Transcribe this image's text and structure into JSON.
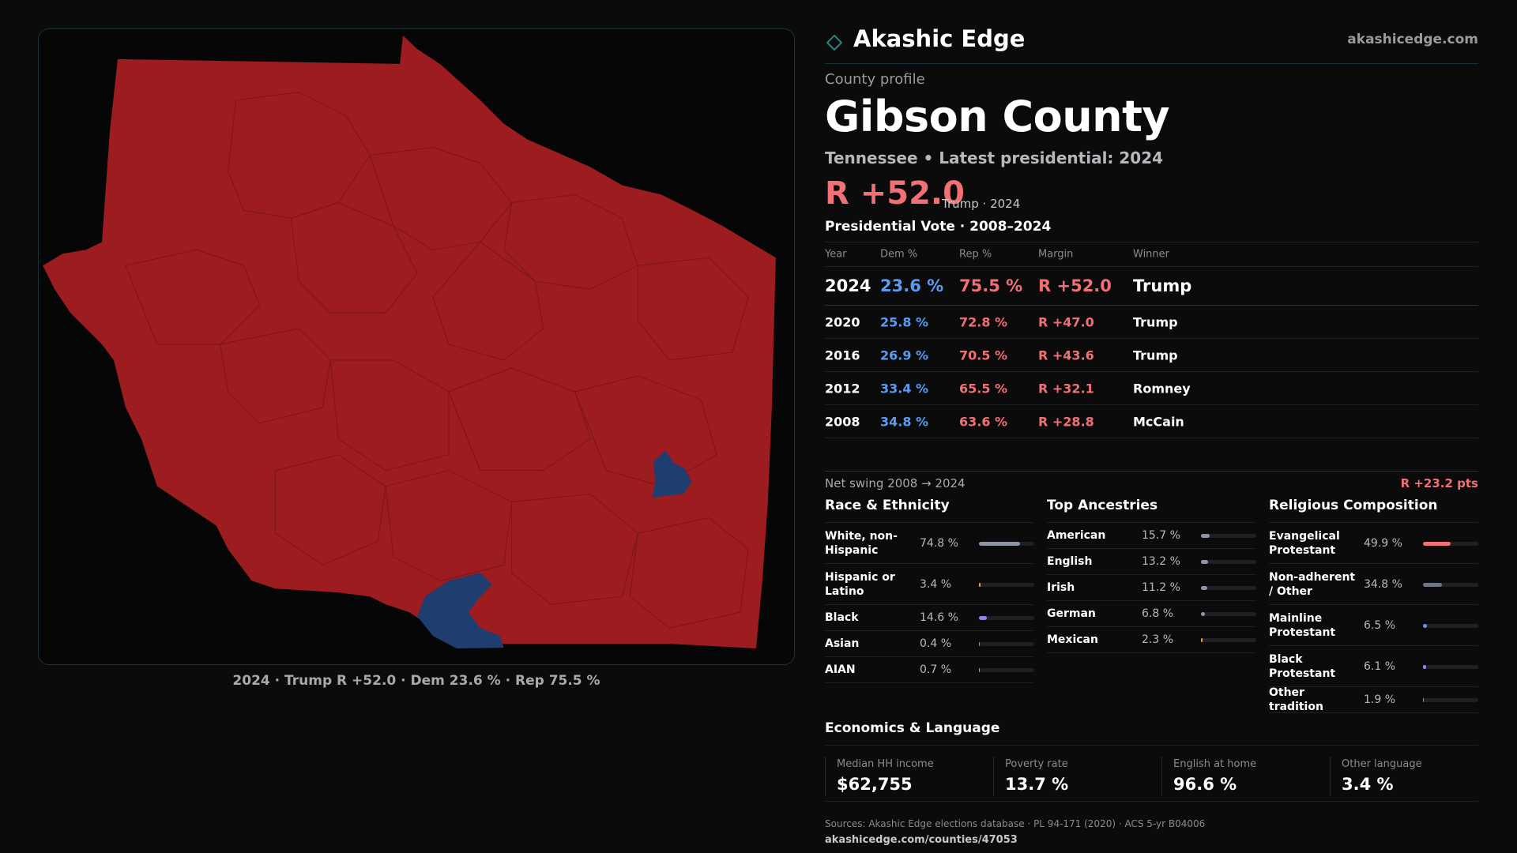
{
  "brand": {
    "name": "Akashic Edge",
    "url": "akashicedge.com"
  },
  "profile": {
    "kicker": "County profile",
    "county": "Gibson County",
    "subtitle": "Tennessee • Latest presidential: 2024",
    "headline_margin": "R +52.0",
    "headline_note": "Trump · 2024"
  },
  "map": {
    "caption": "2024 · Trump R +52.0 · Dem 23.6 % · Rep 75.5 %",
    "rep_color": "#9c1c1f",
    "dem_color": "#1f3d6e"
  },
  "vote": {
    "title": "Presidential Vote · 2008–2024",
    "headers": {
      "year": "Year",
      "dem": "Dem %",
      "rep": "Rep %",
      "margin": "Margin",
      "winner": "Winner"
    },
    "rows": [
      {
        "year": "2024",
        "dem": "23.6 %",
        "rep": "75.5 %",
        "margin": "R +52.0",
        "winner": "Trump"
      },
      {
        "year": "2020",
        "dem": "25.8 %",
        "rep": "72.8 %",
        "margin": "R +47.0",
        "winner": "Trump"
      },
      {
        "year": "2016",
        "dem": "26.9 %",
        "rep": "70.5 %",
        "margin": "R +43.6",
        "winner": "Trump"
      },
      {
        "year": "2012",
        "dem": "33.4 %",
        "rep": "65.5 %",
        "margin": "R +32.1",
        "winner": "Romney"
      },
      {
        "year": "2008",
        "dem": "34.8 %",
        "rep": "63.6 %",
        "margin": "R +28.8",
        "winner": "McCain"
      }
    ],
    "swing_label": "Net swing 2008 → 2024",
    "swing_value": "R +23.2 pts"
  },
  "race": {
    "title": "Race & Ethnicity",
    "items": [
      {
        "label": "White, non-Hispanic",
        "value": "74.8 %",
        "fraction": 0.748,
        "color": "#8e96a6"
      },
      {
        "label": "Hispanic or Latino",
        "value": "3.4 %",
        "fraction": 0.034,
        "color": "#e0a33a"
      },
      {
        "label": "Black",
        "value": "14.6 %",
        "fraction": 0.146,
        "color": "#9a7de8"
      },
      {
        "label": "Asian",
        "value": "0.4 %",
        "fraction": 0.004,
        "color": "#5aa0c8"
      },
      {
        "label": "AIAN",
        "value": "0.7 %",
        "fraction": 0.007,
        "color": "#e08a5a"
      }
    ]
  },
  "ancestry": {
    "title": "Top Ancestries",
    "items": [
      {
        "label": "American",
        "value": "15.7 %",
        "fraction": 0.157,
        "color": "#8e96a6"
      },
      {
        "label": "English",
        "value": "13.2 %",
        "fraction": 0.132,
        "color": "#8e96a6"
      },
      {
        "label": "Irish",
        "value": "11.2 %",
        "fraction": 0.112,
        "color": "#8e96a6"
      },
      {
        "label": "German",
        "value": "6.8 %",
        "fraction": 0.068,
        "color": "#8e96a6"
      },
      {
        "label": "Mexican",
        "value": "2.3 %",
        "fraction": 0.023,
        "color": "#e0a33a"
      }
    ]
  },
  "religion": {
    "title": "Religious Composition",
    "items": [
      {
        "label": "Evangelical Protestant",
        "value": "49.9 %",
        "fraction": 0.499,
        "color": "#f07075"
      },
      {
        "label": "Non-adherent / Other",
        "value": "34.8 %",
        "fraction": 0.348,
        "color": "#6f7584"
      },
      {
        "label": "Mainline Protestant",
        "value": "6.5 %",
        "fraction": 0.065,
        "color": "#5b9cf2"
      },
      {
        "label": "Black Protestant",
        "value": "6.1 %",
        "fraction": 0.061,
        "color": "#9a7de8"
      },
      {
        "label": "Other tradition",
        "value": "1.9 %",
        "fraction": 0.019,
        "color": "#8e96a6"
      }
    ]
  },
  "economics": {
    "title": "Economics & Language",
    "items": [
      {
        "label": "Median HH income",
        "value": "$62,755"
      },
      {
        "label": "Poverty rate",
        "value": "13.7 %"
      },
      {
        "label": "English at home",
        "value": "96.6 %"
      },
      {
        "label": "Other language",
        "value": "3.4 %"
      }
    ]
  },
  "footer": {
    "sources": "Sources: Akashic Edge elections database · PL 94-171 (2020) · ACS 5-yr B04006",
    "page_url": "akashicedge.com/counties/47053"
  }
}
